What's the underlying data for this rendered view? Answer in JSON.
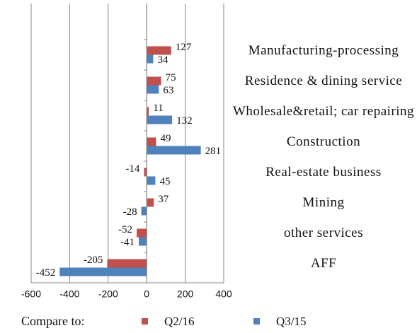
{
  "chart_data": {
    "type": "hbar",
    "categories": [
      "Manufacturing-processing",
      "Residence & dining service",
      "Wholesale&retail; car repairing",
      "Construction",
      "Real-estate business",
      "Mining",
      "other services",
      "AFF"
    ],
    "series": [
      {
        "name": "Q2/16",
        "color": "#c0504d",
        "values": [
          127,
          75,
          11,
          49,
          -14,
          37,
          -52,
          -205
        ]
      },
      {
        "name": "Q3/15",
        "color": "#4f81bd",
        "values": [
          34,
          63,
          132,
          281,
          45,
          -28,
          -41,
          -452
        ]
      }
    ],
    "xlim": [
      -600,
      400
    ],
    "xticks": [
      -600,
      -400,
      -200,
      0,
      200,
      400
    ],
    "grid": true,
    "legend_title": "Compare to:",
    "legend": "bottom"
  }
}
